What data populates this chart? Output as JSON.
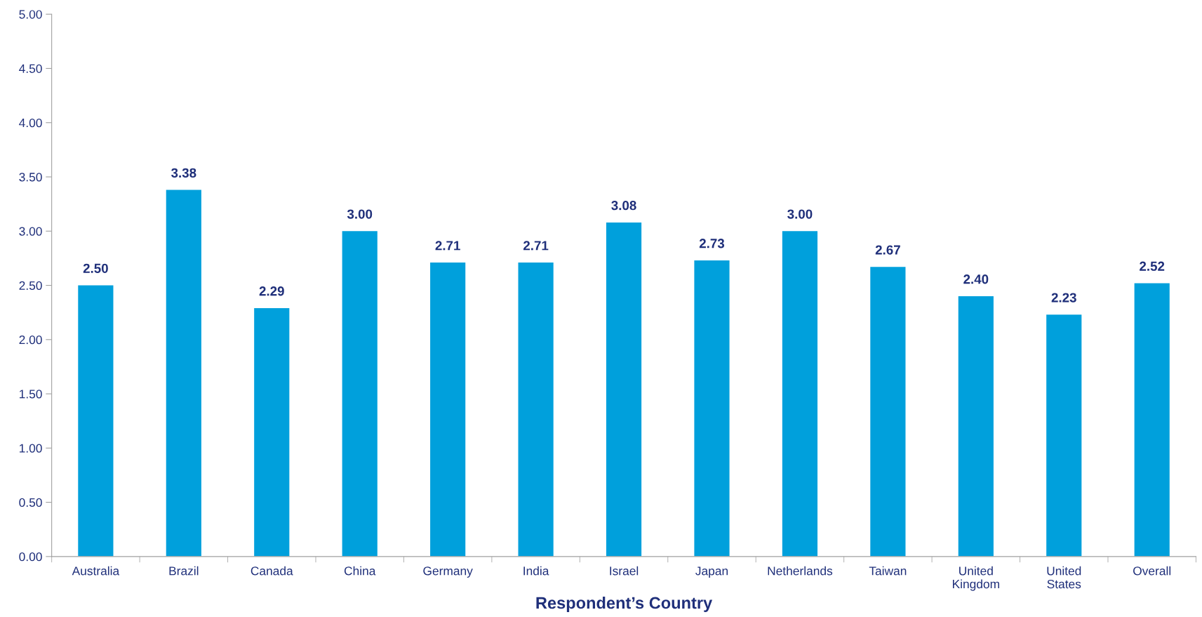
{
  "chart_data": {
    "type": "bar",
    "xlabel": "Respondent’s Country",
    "categories": [
      "Australia",
      "Brazil",
      "Canada",
      "China",
      "Germany",
      "India",
      "Israel",
      "Japan",
      "Netherlands",
      "Taiwan",
      "United\nKingdom",
      "United\nStates",
      "Overall"
    ],
    "values": [
      2.5,
      3.38,
      2.29,
      3.0,
      2.71,
      2.71,
      3.08,
      2.73,
      3.0,
      2.67,
      2.4,
      2.23,
      2.52
    ],
    "color": "#00a0dc",
    "ylim": [
      0,
      5
    ],
    "yticks": [
      {
        "value": 0,
        "label": "0.00"
      },
      {
        "value": 0.5,
        "label": "0.50"
      },
      {
        "value": 1,
        "label": "1.00"
      },
      {
        "value": 1.5,
        "label": "1.50"
      },
      {
        "value": 2,
        "label": "2.00"
      },
      {
        "value": 2.5,
        "label": "2.50"
      },
      {
        "value": 3,
        "label": "3.00"
      },
      {
        "value": 3.5,
        "label": "3.50"
      },
      {
        "value": 4,
        "label": "4.00"
      },
      {
        "value": 4.5,
        "label": "4.50"
      },
      {
        "value": 5,
        "label": "5.00"
      }
    ],
    "value_labels": [
      "2.50",
      "3.38",
      "2.29",
      "3.00",
      "2.71",
      "2.71",
      "3.08",
      "2.73",
      "3.00",
      "2.67",
      "2.40",
      "2.23",
      "2.52"
    ],
    "grid": false
  }
}
